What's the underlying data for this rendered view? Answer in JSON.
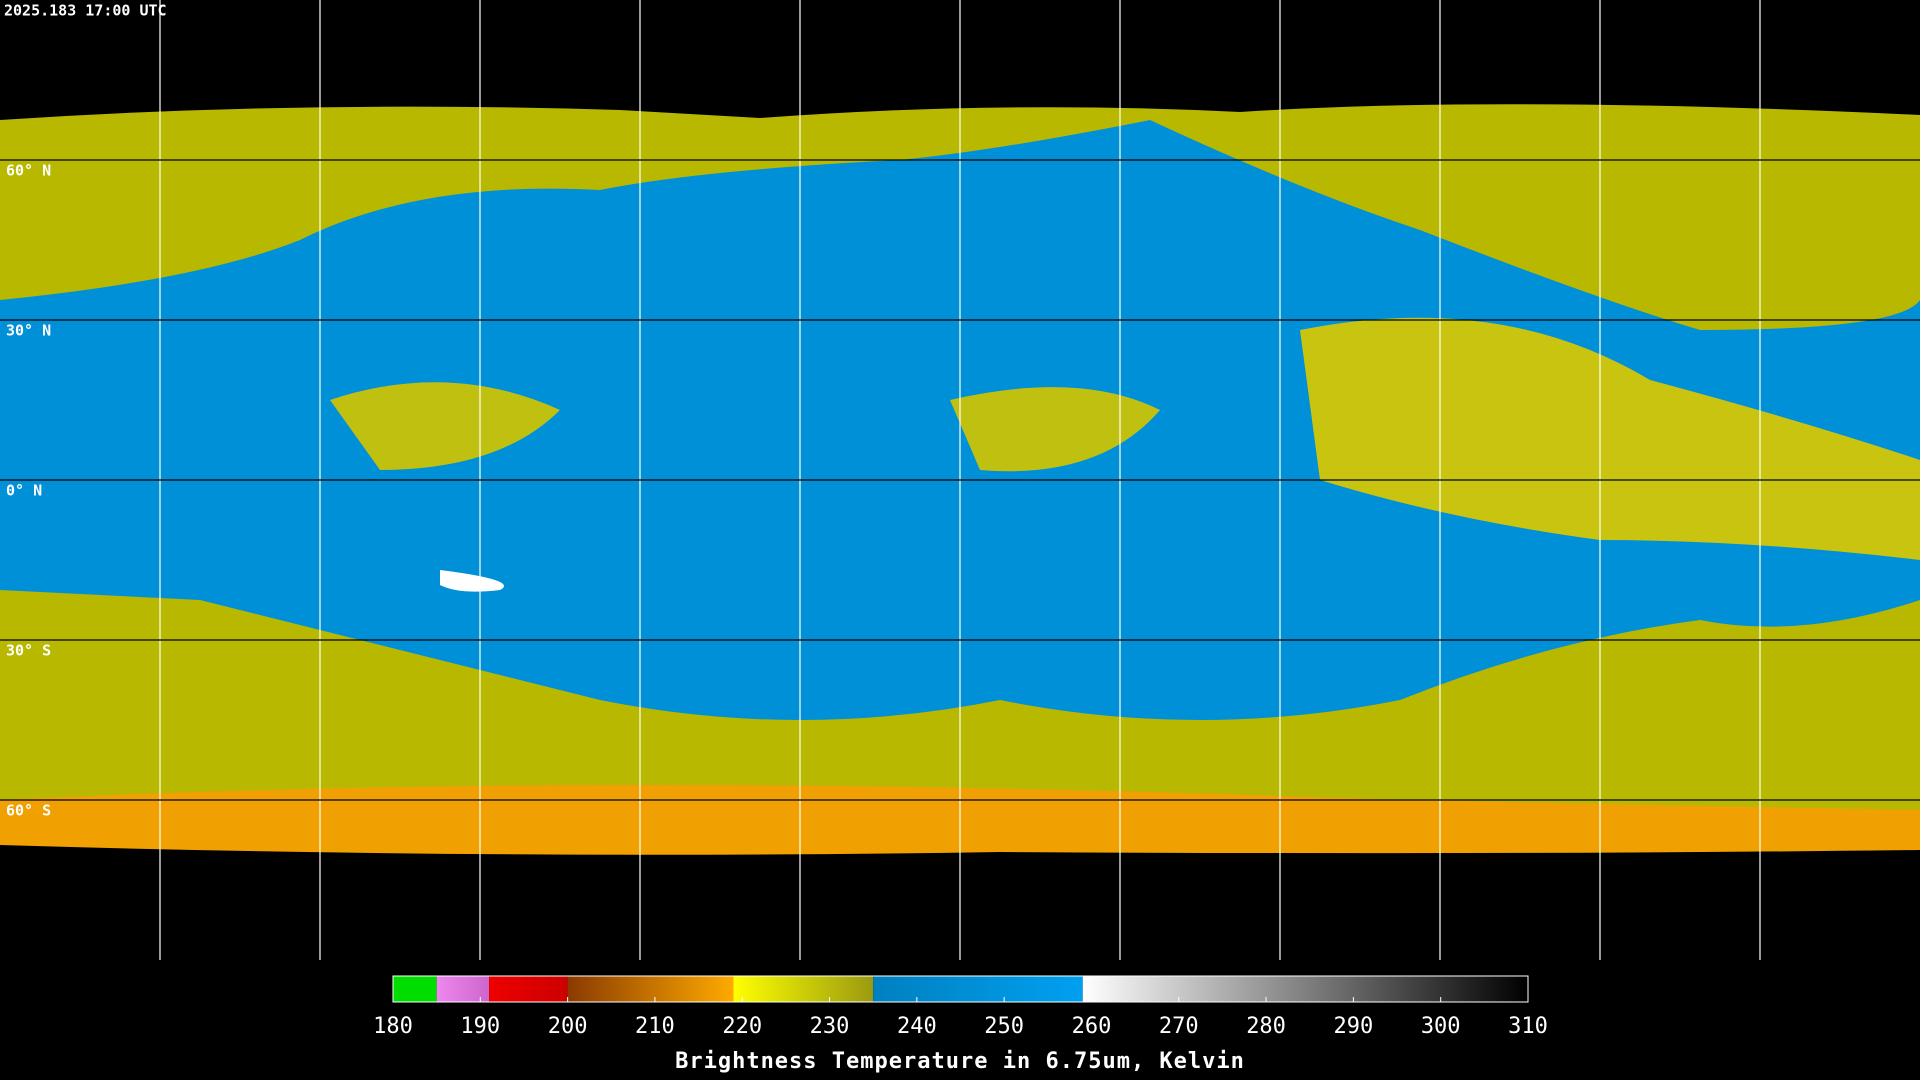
{
  "header": {
    "timestamp": "2025.183 17:00 UTC"
  },
  "map": {
    "lat_labels": [
      {
        "value": 60,
        "label": "60° N"
      },
      {
        "value": 30,
        "label": "30° N"
      },
      {
        "value": 0,
        "label": "0° N"
      },
      {
        "value": -30,
        "label": "30° S"
      },
      {
        "value": -60,
        "label": "60° S"
      }
    ]
  },
  "colorbar": {
    "range": [
      180,
      310
    ],
    "ticks": [
      180,
      190,
      200,
      210,
      220,
      230,
      240,
      250,
      260,
      270,
      280,
      290,
      300,
      310
    ],
    "segments": [
      {
        "from": 180,
        "to": 185,
        "colors": [
          "#00dd00",
          "#00dd00"
        ]
      },
      {
        "from": 185,
        "to": 191,
        "colors": [
          "#ee88ee",
          "#cc66cc"
        ]
      },
      {
        "from": 191,
        "to": 200,
        "colors": [
          "#ee0000",
          "#cc0000"
        ]
      },
      {
        "from": 200,
        "to": 219,
        "colors": [
          "#8a3a00",
          "#ffaa00"
        ]
      },
      {
        "from": 219,
        "to": 235,
        "colors": [
          "#ffff00",
          "#9a9a10"
        ]
      },
      {
        "from": 235,
        "to": 259,
        "colors": [
          "#0080c0",
          "#00a0f0"
        ]
      },
      {
        "from": 259,
        "to": 310,
        "colors": [
          "#ffffff",
          "#000000"
        ]
      }
    ],
    "label": "Brightness Temperature in 6.75um, Kelvin"
  }
}
